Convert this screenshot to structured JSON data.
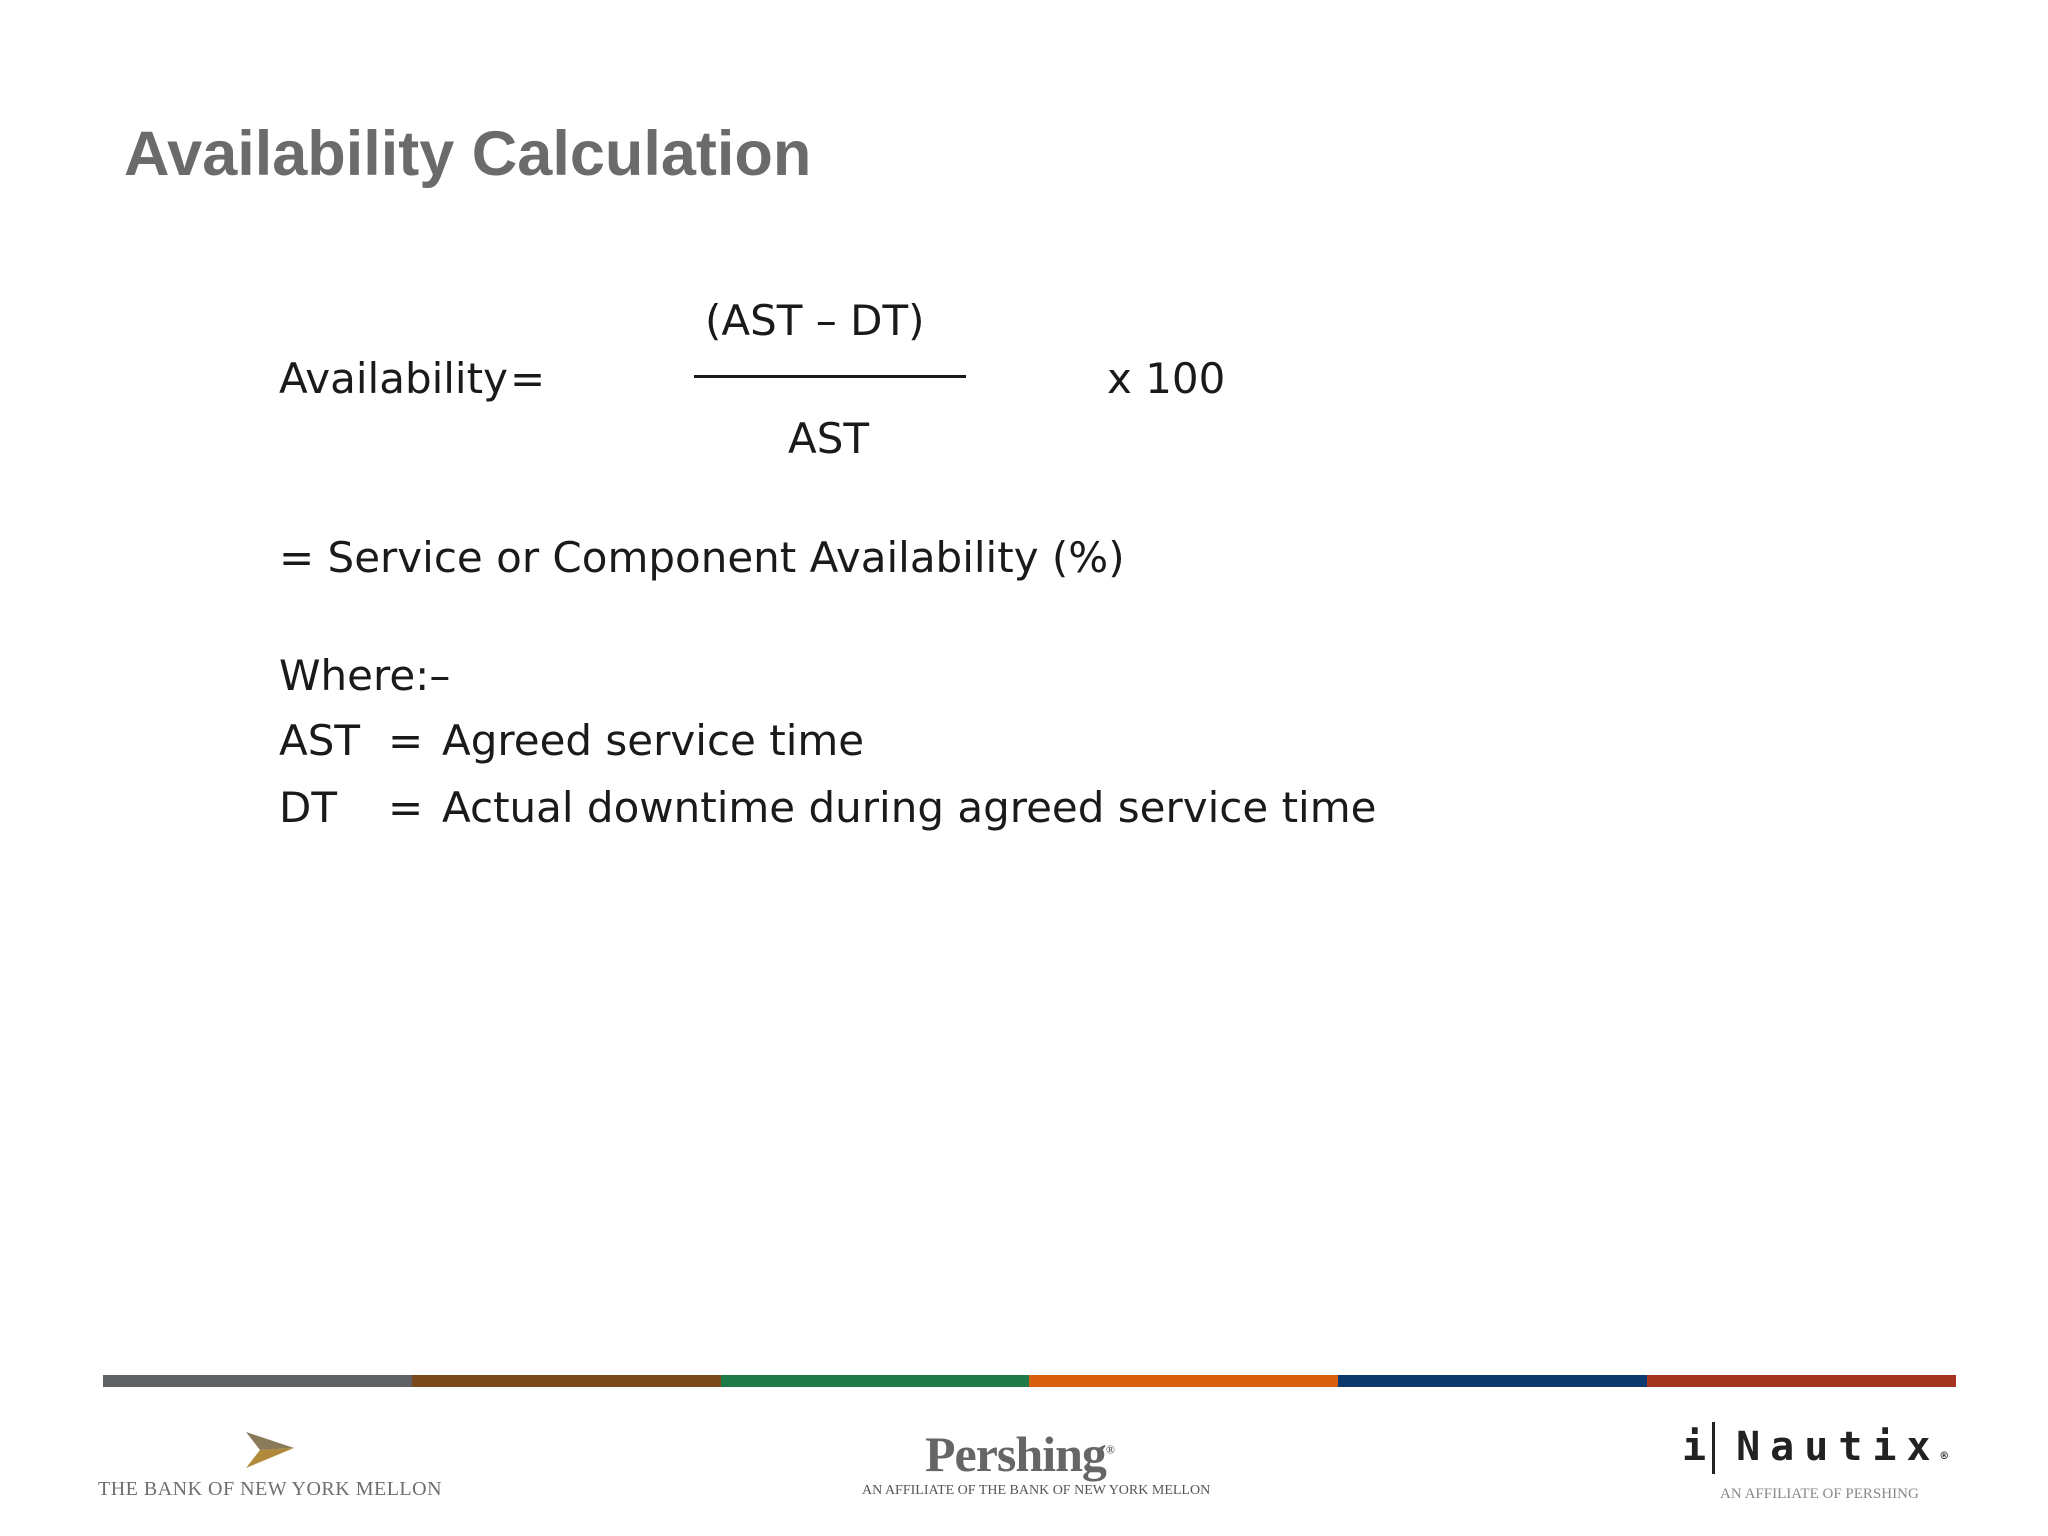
{
  "slide": {
    "title": "Availability Calculation"
  },
  "formula": {
    "lhs": "Availability",
    "equals": "=",
    "numerator": "(AST  –  DT)",
    "denominator": "AST",
    "multiplier": "x 100",
    "result_line": "= Service or Component Availability (%)"
  },
  "definitions": {
    "heading": "Where:–",
    "items": [
      {
        "term": "AST",
        "equals": "=",
        "meaning": "Agreed service time"
      },
      {
        "term": "DT",
        "equals": "=",
        "meaning": "Actual downtime during agreed service time"
      }
    ]
  },
  "footer": {
    "color_bar": [
      "#5f6366",
      "#7a4a1c",
      "#1f7a4a",
      "#d9600f",
      "#0d3a6e",
      "#a4331f"
    ],
    "bny_logo_colors": {
      "left": "#8a7a5a",
      "right": "#b08a3a"
    },
    "bny_name": "THE BANK OF NEW YORK MELLON",
    "pershing_name": "Pershing",
    "pershing_mark": "®",
    "pershing_affiliate": "AN AFFILIATE OF THE BANK OF NEW YORK MELLON",
    "inautix_i": "i",
    "inautix_rest": "Nautix",
    "inautix_mark": "®",
    "inautix_affiliate": "AN AFFILIATE OF PERSHING"
  }
}
